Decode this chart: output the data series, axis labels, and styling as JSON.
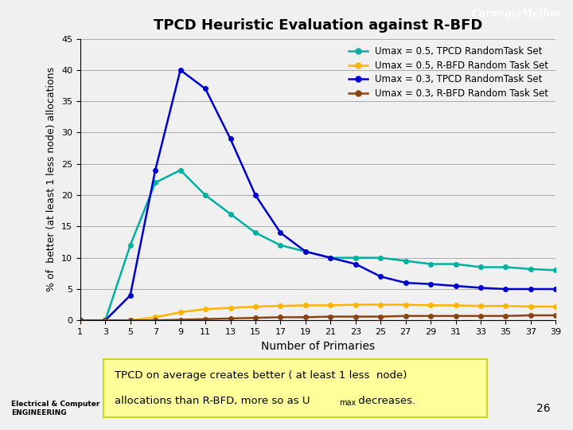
{
  "title": "TPCD Heuristic Evaluation against R-BFD",
  "xlabel": "Number of Primaries",
  "ylabel": "% of  better (at least 1 less node) allocations",
  "x": [
    1,
    3,
    5,
    7,
    9,
    11,
    13,
    15,
    17,
    19,
    21,
    23,
    25,
    27,
    29,
    31,
    33,
    35,
    37,
    39
  ],
  "series": {
    "umax05_tpcd": [
      0,
      0,
      12,
      22,
      24,
      20,
      17,
      14,
      12,
      11,
      10,
      10,
      10,
      9.5,
      9,
      9,
      8.5,
      8.5,
      8.2,
      8.0
    ],
    "umax05_rbfd": [
      0,
      0,
      0,
      0.5,
      1.3,
      1.8,
      2.0,
      2.2,
      2.3,
      2.4,
      2.4,
      2.5,
      2.5,
      2.5,
      2.4,
      2.4,
      2.3,
      2.3,
      2.2,
      2.2
    ],
    "umax03_tpcd": [
      0,
      0,
      4,
      24,
      40,
      37,
      29,
      20,
      14,
      11,
      10,
      9,
      7,
      6,
      5.8,
      5.5,
      5.2,
      5.0,
      5.0,
      5.0
    ],
    "umax03_rbfd": [
      0,
      0,
      0,
      0,
      0.1,
      0.2,
      0.3,
      0.4,
      0.5,
      0.5,
      0.6,
      0.6,
      0.6,
      0.7,
      0.7,
      0.7,
      0.7,
      0.7,
      0.8,
      0.8
    ]
  },
  "colors": {
    "umax05_tpcd": "#00B0A0",
    "umax05_rbfd": "#FFB400",
    "umax03_tpcd": "#0000CC",
    "umax03_rbfd": "#8B4513"
  },
  "legend_labels": {
    "umax05_tpcd": "Umax = 0.5, TPCD RandomTask Set",
    "umax05_rbfd": "Umax = 0.5, R-BFD Random Task Set",
    "umax03_tpcd": "Umax = 0.3, TPCD RandomTask Set",
    "umax03_rbfd": "Umax = 0.3, R-BFD Random Task Set"
  },
  "ylim": [
    0,
    45
  ],
  "yticks": [
    0,
    5,
    10,
    15,
    20,
    25,
    30,
    35,
    40,
    45
  ],
  "background_color": "#F0F0F0",
  "plot_bg_color": "#F0F0F0",
  "header_color": "#CC0000",
  "slide_number": "26",
  "carnegie_mellon_text": "CarnegieMellon",
  "annot_line1": "TPCD on average creates better ( at least 1 less  node)",
  "annot_line2_pre": "allocations than R-BFD, more so as U",
  "annot_line2_sub": "max",
  "annot_line2_post": " decreases.",
  "annot_bg": "#FFFF99",
  "annot_border": "#CCCC00"
}
